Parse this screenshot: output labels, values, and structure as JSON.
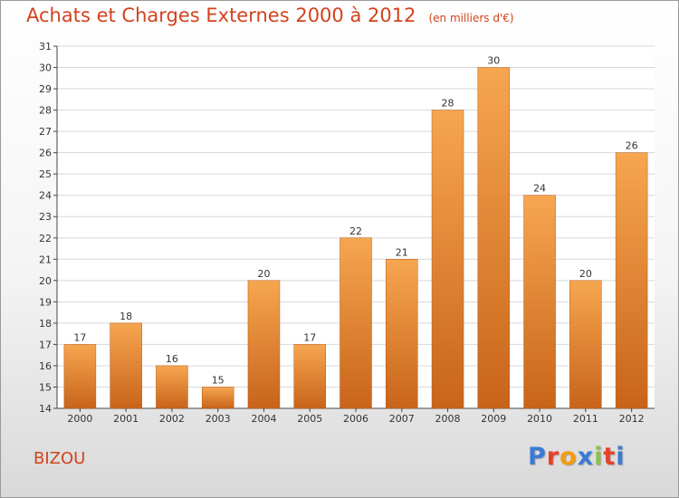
{
  "header": {
    "title": "Achats et Charges Externes 2000 à 2012",
    "subtitle": "(en milliers d'€)"
  },
  "footer": {
    "place": "BIZOU",
    "brand": "Proxiti",
    "brand_colors": [
      "#3a7bd5",
      "#e8402a",
      "#f39c12",
      "#3a7bd5",
      "#8bc34a",
      "#e8402a",
      "#3a7bd5"
    ]
  },
  "colors": {
    "title": "#d2431c",
    "bar_top": "#f6a650",
    "bar_bottom": "#c8641a",
    "grid": "#d8d8d8"
  },
  "chart_data": {
    "type": "bar",
    "categories": [
      "2000",
      "2001",
      "2002",
      "2003",
      "2004",
      "2005",
      "2006",
      "2007",
      "2008",
      "2009",
      "2010",
      "2011",
      "2012"
    ],
    "values": [
      17,
      18,
      16,
      15,
      20,
      17,
      22,
      21,
      28,
      30,
      24,
      20,
      26
    ],
    "ylim": [
      14,
      31
    ],
    "yticks": [
      14,
      15,
      16,
      17,
      18,
      19,
      20,
      21,
      22,
      23,
      24,
      25,
      26,
      27,
      28,
      29,
      30,
      31
    ],
    "grid": true,
    "data_labels": true
  }
}
